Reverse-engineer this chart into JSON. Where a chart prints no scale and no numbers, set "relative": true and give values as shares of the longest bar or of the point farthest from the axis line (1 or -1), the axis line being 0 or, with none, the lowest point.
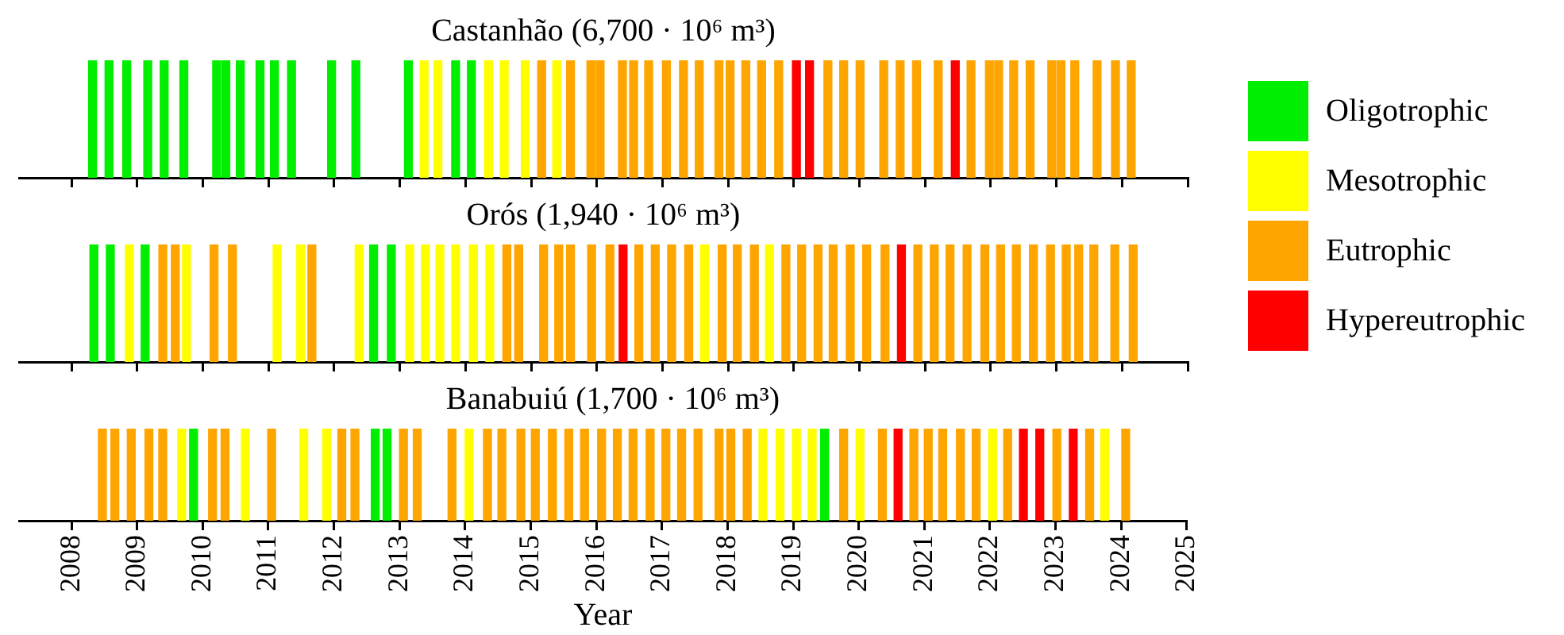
{
  "chart_data": [
    {
      "type": "bar",
      "title": "Castanhão (6,700 · 10⁶ m³)",
      "relative": true,
      "legend": "right",
      "tick_labels": false,
      "xlim": [
        2007.2,
        2025
      ],
      "xticks": [
        {
          "value": 2008,
          "label": null
        },
        {
          "value": 2009,
          "label": null
        },
        {
          "value": 2010,
          "label": null
        },
        {
          "value": 2011,
          "label": null
        },
        {
          "value": 2012,
          "label": null
        },
        {
          "value": 2013,
          "label": null
        },
        {
          "value": 2014,
          "label": null
        },
        {
          "value": 2015,
          "label": null
        },
        {
          "value": 2016,
          "label": null
        },
        {
          "value": 2017,
          "label": null
        },
        {
          "value": 2018,
          "label": null
        },
        {
          "value": 2019,
          "label": null
        },
        {
          "value": 2020,
          "label": null
        },
        {
          "value": 2021,
          "label": null
        },
        {
          "value": 2022,
          "label": null
        },
        {
          "value": 2023,
          "label": null
        },
        {
          "value": 2024,
          "label": null
        },
        {
          "value": 2025,
          "label": null
        }
      ],
      "series": [
        {
          "name": "Oligotrophic",
          "color": "#00ee00",
          "x": [
            2008.32,
            2008.57,
            2008.84,
            2009.16,
            2009.41,
            2009.71,
            2010.21,
            2010.35,
            2010.57,
            2010.87,
            2011.09,
            2011.35,
            2011.96,
            2012.33,
            2013.13,
            2013.85,
            2014.09
          ],
          "values": [
            1,
            1,
            1,
            1,
            1,
            1,
            1,
            1,
            1,
            1,
            1,
            1,
            1,
            1,
            1,
            1,
            1
          ]
        },
        {
          "name": "Mesotrophic",
          "color": "#ffff00",
          "x": [
            2013.37,
            2013.58,
            2014.35,
            2014.59,
            2014.91,
            2015.39
          ],
          "values": [
            1,
            1,
            1,
            1,
            1,
            1
          ]
        },
        {
          "name": "Eutrophic",
          "color": "#ffa500",
          "x": [
            2015.16,
            2015.6,
            2015.91,
            2016.05,
            2016.39,
            2016.56,
            2016.79,
            2017.06,
            2017.32,
            2017.56,
            2017.86,
            2018.03,
            2018.27,
            2018.51,
            2018.77,
            2019.52,
            2019.76,
            2020.01,
            2020.37,
            2020.62,
            2020.87,
            2021.2,
            2021.7,
            2021.98,
            2022.12,
            2022.35,
            2022.6,
            2022.93,
            2023.07,
            2023.28,
            2023.62,
            2023.9,
            2024.14
          ],
          "values": [
            1,
            1,
            1,
            1,
            1,
            1,
            1,
            1,
            1,
            1,
            1,
            1,
            1,
            1,
            1,
            1,
            1,
            1,
            1,
            1,
            1,
            1,
            1,
            1,
            1,
            1,
            1,
            1,
            1,
            1,
            1,
            1,
            1
          ]
        },
        {
          "name": "Hypereutrophic",
          "color": "#ff0000",
          "x": [
            2019.04,
            2019.24,
            2021.46
          ],
          "values": [
            1,
            1,
            1
          ]
        }
      ]
    },
    {
      "type": "bar",
      "title": "Orós (1,940 · 10⁶ m³)",
      "relative": true,
      "tick_labels": false,
      "xlim": [
        2007.2,
        2025
      ],
      "xticks": [
        {
          "value": 2008,
          "label": null
        },
        {
          "value": 2009,
          "label": null
        },
        {
          "value": 2010,
          "label": null
        },
        {
          "value": 2011,
          "label": null
        },
        {
          "value": 2012,
          "label": null
        },
        {
          "value": 2013,
          "label": null
        },
        {
          "value": 2014,
          "label": null
        },
        {
          "value": 2015,
          "label": null
        },
        {
          "value": 2016,
          "label": null
        },
        {
          "value": 2017,
          "label": null
        },
        {
          "value": 2018,
          "label": null
        },
        {
          "value": 2019,
          "label": null
        },
        {
          "value": 2020,
          "label": null
        },
        {
          "value": 2021,
          "label": null
        },
        {
          "value": 2022,
          "label": null
        },
        {
          "value": 2023,
          "label": null
        },
        {
          "value": 2024,
          "label": null
        },
        {
          "value": 2025,
          "label": null
        }
      ],
      "series": [
        {
          "color": "#00ee00",
          "x": [
            2008.34,
            2008.59,
            2009.12,
            2012.6,
            2012.87
          ],
          "values": [
            1,
            1,
            1,
            1,
            1
          ]
        },
        {
          "color": "#ffff00",
          "x": [
            2008.88,
            2009.75,
            2011.13,
            2011.49,
            2012.38,
            2013.15,
            2013.39,
            2013.61,
            2013.85,
            2014.12,
            2014.37,
            2017.64,
            2018.63
          ],
          "values": [
            1,
            1,
            1,
            1,
            1,
            1,
            1,
            1,
            1,
            1,
            1,
            1,
            1
          ]
        },
        {
          "color": "#ffa500",
          "x": [
            2009.39,
            2009.58,
            2010.17,
            2010.45,
            2011.66,
            2014.63,
            2014.81,
            2015.19,
            2015.42,
            2015.6,
            2015.92,
            2016.2,
            2016.64,
            2016.89,
            2017.14,
            2017.4,
            2017.91,
            2018.14,
            2018.4,
            2018.88,
            2019.12,
            2019.37,
            2019.6,
            2019.86,
            2020.11,
            2020.39,
            2020.89,
            2021.14,
            2021.38,
            2021.64,
            2021.91,
            2022.15,
            2022.39,
            2022.65,
            2022.91,
            2023.15,
            2023.34,
            2023.57,
            2023.89,
            2024.17
          ],
          "values": [
            1,
            1,
            1,
            1,
            1,
            1,
            1,
            1,
            1,
            1,
            1,
            1,
            1,
            1,
            1,
            1,
            1,
            1,
            1,
            1,
            1,
            1,
            1,
            1,
            1,
            1,
            1,
            1,
            1,
            1,
            1,
            1,
            1,
            1,
            1,
            1,
            1,
            1,
            1,
            1
          ]
        },
        {
          "color": "#ff0000",
          "x": [
            2016.4,
            2020.64
          ],
          "values": [
            1,
            1
          ]
        }
      ]
    },
    {
      "type": "bar",
      "title": "Banabuiú (1,700 · 10⁶ m³)",
      "relative": true,
      "xlabel": "Year",
      "xlim": [
        2007.2,
        2025
      ],
      "xticks": [
        2008,
        2009,
        2010,
        2011,
        2012,
        2013,
        2014,
        2015,
        2016,
        2017,
        2018,
        2019,
        2020,
        2021,
        2022,
        2023,
        2024,
        2025
      ],
      "series": [
        {
          "color": "#00ee00",
          "x": [
            2009.86,
            2012.63,
            2012.81,
            2019.48
          ],
          "values": [
            1,
            1,
            1,
            1
          ]
        },
        {
          "color": "#ffff00",
          "x": [
            2009.68,
            2010.65,
            2011.54,
            2011.89,
            2014.06,
            2018.54,
            2018.8,
            2019.05,
            2019.29,
            2020.02,
            2022.04,
            2023.75
          ],
          "values": [
            1,
            1,
            1,
            1,
            1,
            1,
            1,
            1,
            1,
            1,
            1,
            1
          ]
        },
        {
          "color": "#ffa500",
          "x": [
            2008.47,
            2008.66,
            2008.91,
            2009.18,
            2009.39,
            2010.15,
            2010.34,
            2011.05,
            2012.12,
            2012.32,
            2013.06,
            2013.27,
            2013.8,
            2014.34,
            2014.56,
            2014.85,
            2015.07,
            2015.33,
            2015.58,
            2015.82,
            2016.08,
            2016.32,
            2016.56,
            2016.82,
            2017.06,
            2017.3,
            2017.55,
            2017.87,
            2018.05,
            2018.3,
            2019.77,
            2020.36,
            2020.84,
            2021.06,
            2021.28,
            2021.55,
            2021.79,
            2022.27,
            2023.02,
            2023.52,
            2024.07
          ],
          "values": [
            1,
            1,
            1,
            1,
            1,
            1,
            1,
            1,
            1,
            1,
            1,
            1,
            1,
            1,
            1,
            1,
            1,
            1,
            1,
            1,
            1,
            1,
            1,
            1,
            1,
            1,
            1,
            1,
            1,
            1,
            1,
            1,
            1,
            1,
            1,
            1,
            1,
            1,
            1,
            1,
            1
          ]
        },
        {
          "color": "#ff0000",
          "x": [
            2020.6,
            2022.51,
            2022.76,
            2023.27
          ],
          "values": [
            1,
            1,
            1,
            1
          ]
        }
      ]
    }
  ]
}
